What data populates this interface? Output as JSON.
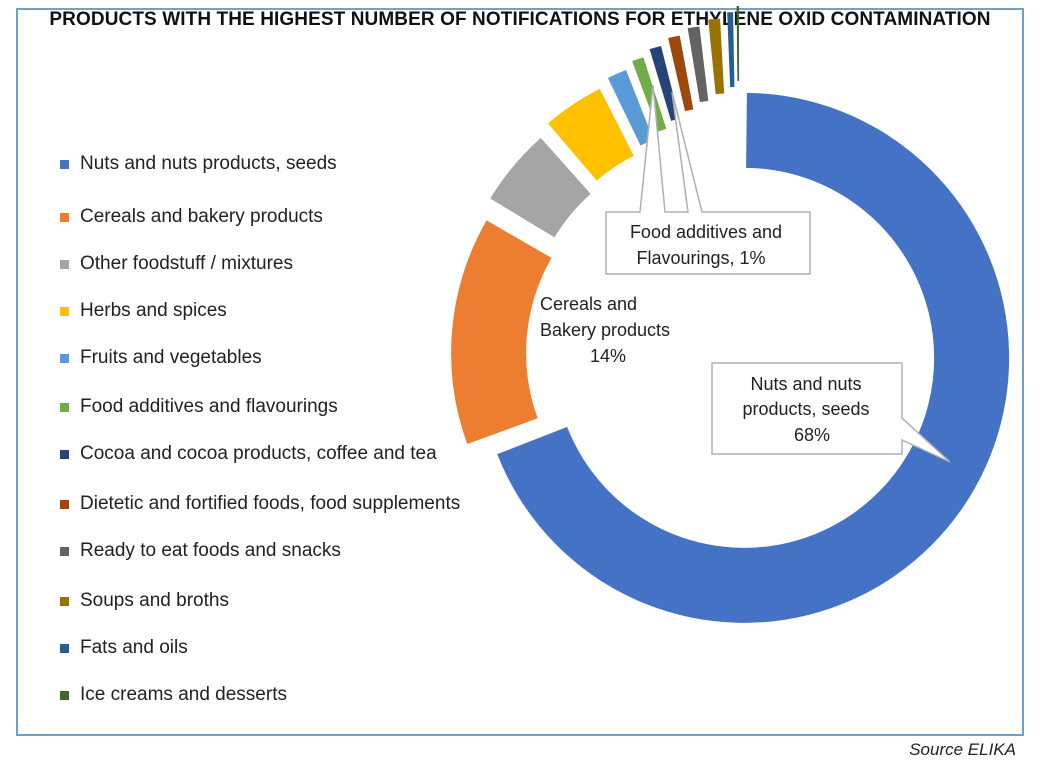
{
  "chart_data": {
    "type": "pie",
    "style": "donut",
    "title": "PRODUCTS WITH THE HIGHEST NUMBER OF NOTIFICATIONS FOR ETHYLENE OXID CONTAMINATION",
    "legend_position": "left",
    "slices": [
      {
        "label": "Nuts and nuts products, seeds",
        "value": 68,
        "color": "#4472c4"
      },
      {
        "label": "Cereals and bakery products",
        "value": 14,
        "color": "#ed7d31"
      },
      {
        "label": "Other foodstuff / mixtures",
        "value": 5,
        "color": "#a5a5a5"
      },
      {
        "label": "Herbs and spices",
        "value": 4,
        "color": "#ffc000"
      },
      {
        "label": "Fruits and vegetables",
        "value": 1.5,
        "color": "#5b9bd5"
      },
      {
        "label": "Food additives and flavourings",
        "value": 1,
        "color": "#70ad47"
      },
      {
        "label": "Cocoa and cocoa products, coffee and tea",
        "value": 1,
        "color": "#264478"
      },
      {
        "label": "Dietetic and fortified foods, food supplements",
        "value": 1,
        "color": "#9e480e"
      },
      {
        "label": "Ready to eat foods and snacks",
        "value": 1,
        "color": "#636363"
      },
      {
        "label": "Soups and broths",
        "value": 1,
        "color": "#997300"
      },
      {
        "label": "Fats and oils",
        "value": 0.5,
        "color": "#255e91"
      },
      {
        "label": "Ice creams and desserts",
        "value": 0.2,
        "color": "#43682b"
      }
    ],
    "data_labels": {
      "nuts": {
        "lines": [
          "Nuts and nuts",
          "products, seeds",
          "68%"
        ]
      },
      "cereals": {
        "lines": [
          "Cereals and",
          "Bakery products",
          "14%"
        ]
      },
      "additives": {
        "lines": [
          "Food additives and",
          "Flavourings, 1%"
        ]
      }
    }
  },
  "source": "Source ELIKA"
}
